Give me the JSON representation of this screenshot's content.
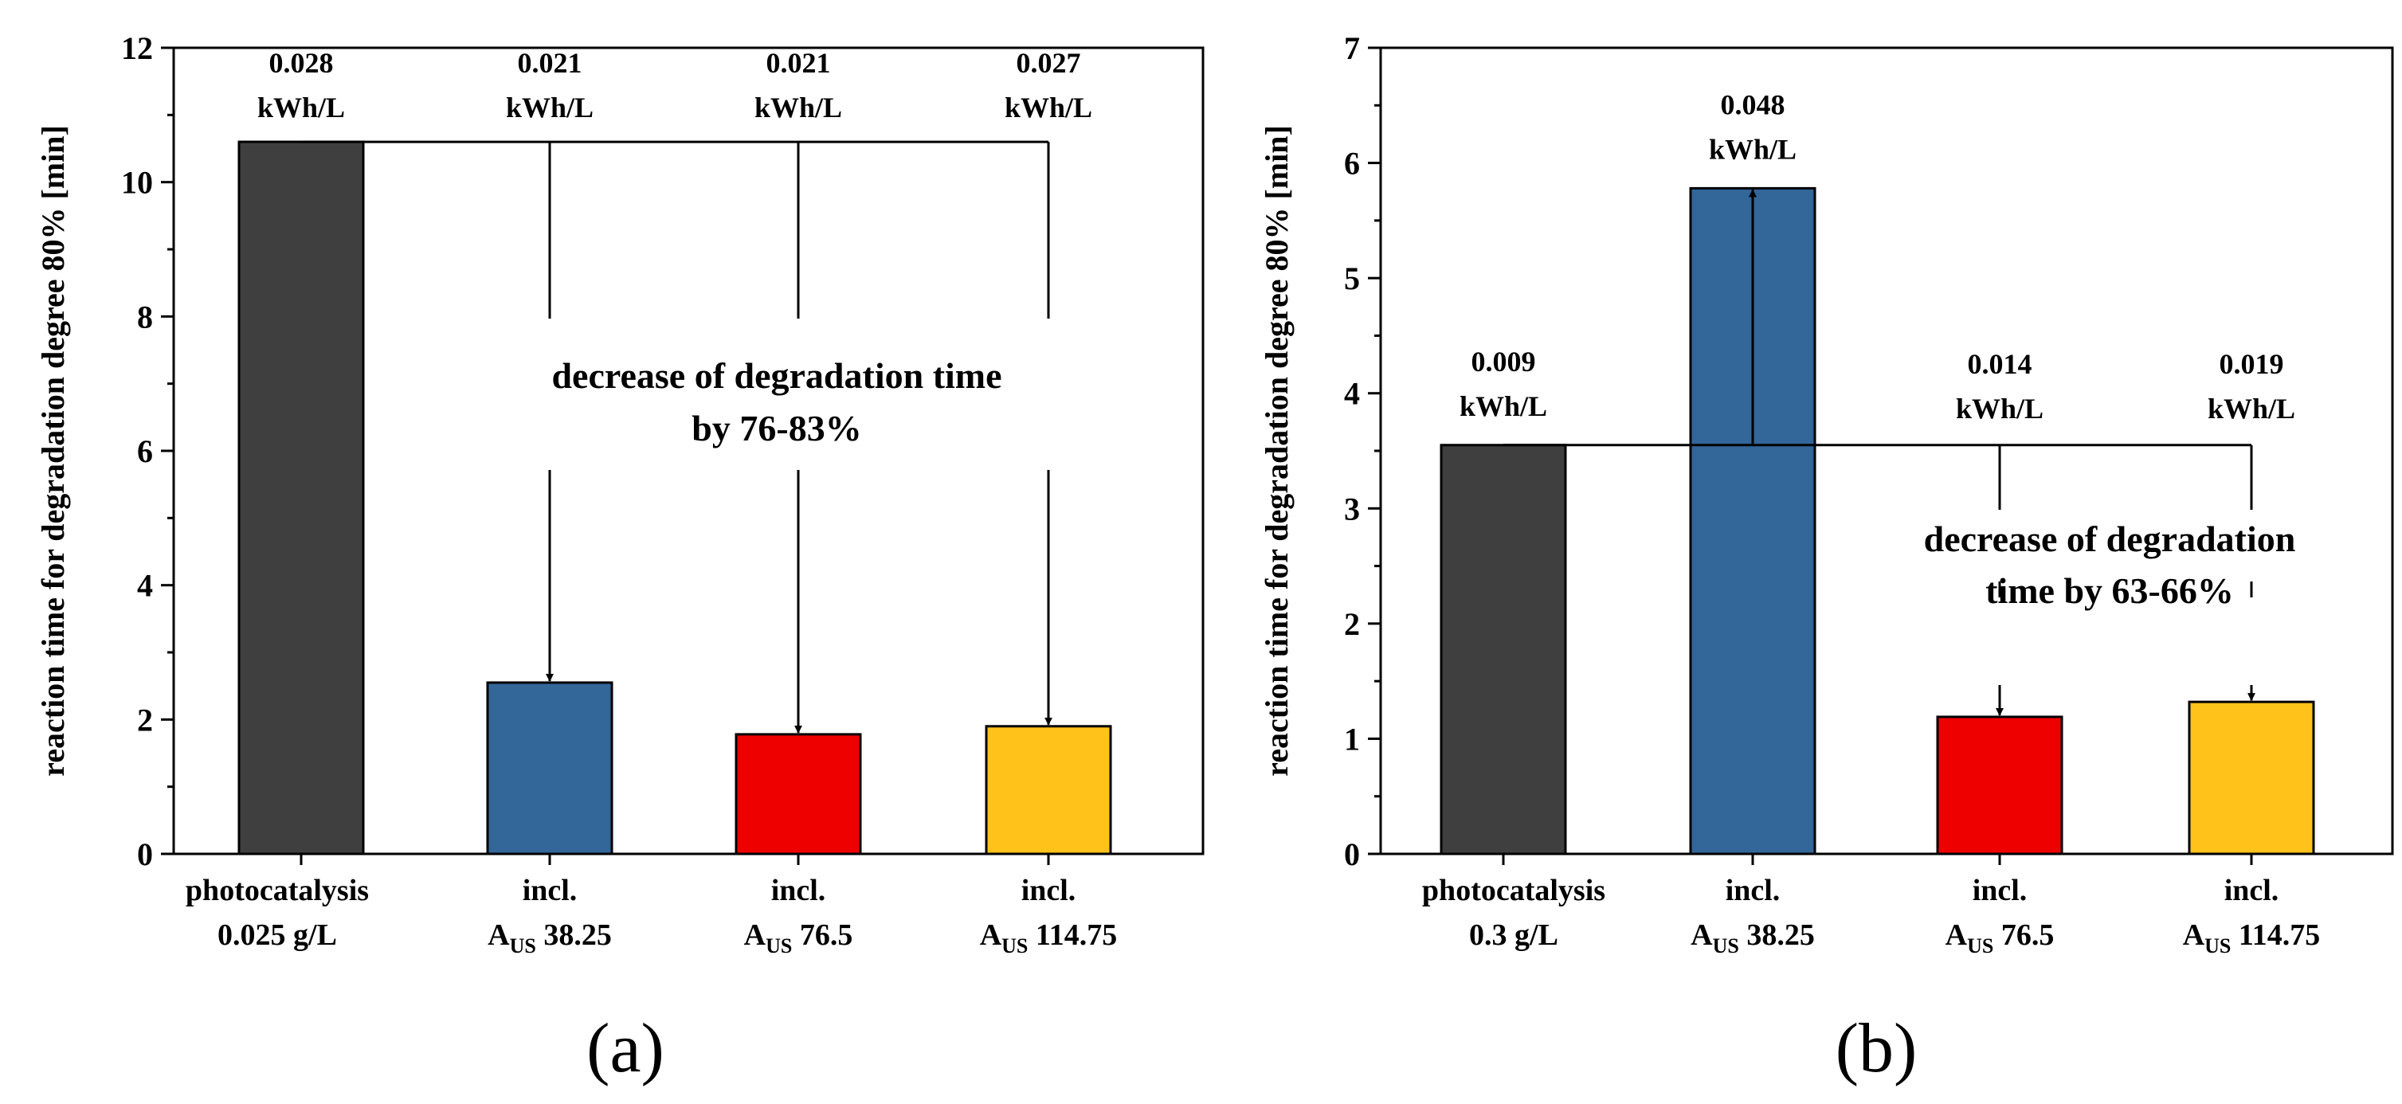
{
  "figure": {
    "panels": [
      {
        "panel_label": "(a)",
        "annotation": [
          "decrease of degradation time",
          "by 76-83%"
        ]
      },
      {
        "panel_label": "(b)",
        "annotation": [
          "decrease of degradation",
          "time by 63-66%"
        ]
      }
    ]
  },
  "chart_data": [
    {
      "type": "bar",
      "title": "",
      "xlabel": "",
      "ylabel": "reaction time for degradation degree 80% [min]",
      "ylim": [
        0,
        12
      ],
      "yticks": [
        0,
        2,
        4,
        6,
        8,
        10,
        12
      ],
      "categories": [
        {
          "line1": "photocatalysis",
          "line2_main": "0.025 g/L",
          "line2_sub": "",
          "line2_tail": ""
        },
        {
          "line1": "incl.",
          "line2_main": "A",
          "line2_sub": "US",
          "line2_tail": " 38.25"
        },
        {
          "line1": "incl.",
          "line2_main": "A",
          "line2_sub": "US",
          "line2_tail": " 76.5"
        },
        {
          "line1": "incl.",
          "line2_main": "A",
          "line2_sub": "US",
          "line2_tail": " 114.75"
        }
      ],
      "values": [
        10.6,
        2.55,
        1.78,
        1.9
      ],
      "colors": [
        "#3f3f3f",
        "#336699",
        "#ee0000",
        "#ffc21a"
      ],
      "energy_labels": [
        [
          "0.028",
          "kWh/L"
        ],
        [
          "0.021",
          "kWh/L"
        ],
        [
          "0.021",
          "kWh/L"
        ],
        [
          "0.027",
          "kWh/L"
        ]
      ],
      "reference_value": 10.6
    },
    {
      "type": "bar",
      "title": "",
      "xlabel": "",
      "ylabel": "reaction time for degradation degree 80% [min]",
      "ylim": [
        0,
        7
      ],
      "yticks": [
        0,
        1,
        2,
        3,
        4,
        5,
        6,
        7
      ],
      "categories": [
        {
          "line1": "photocatalysis",
          "line2_main": "0.3 g/L",
          "line2_sub": "",
          "line2_tail": ""
        },
        {
          "line1": "incl.",
          "line2_main": "A",
          "line2_sub": "US",
          "line2_tail": " 38.25"
        },
        {
          "line1": "incl.",
          "line2_main": "A",
          "line2_sub": "US",
          "line2_tail": " 76.5"
        },
        {
          "line1": "incl.",
          "line2_main": "A",
          "line2_sub": "US",
          "line2_tail": " 114.75"
        }
      ],
      "values": [
        3.55,
        5.78,
        1.19,
        1.32
      ],
      "colors": [
        "#3f3f3f",
        "#336699",
        "#ee0000",
        "#ffc21a"
      ],
      "energy_labels": [
        [
          "0.009",
          "kWh/L"
        ],
        [
          "0.048",
          "kWh/L"
        ],
        [
          "0.014",
          "kWh/L"
        ],
        [
          "0.019",
          "kWh/L"
        ]
      ],
      "reference_value": 3.55
    }
  ]
}
